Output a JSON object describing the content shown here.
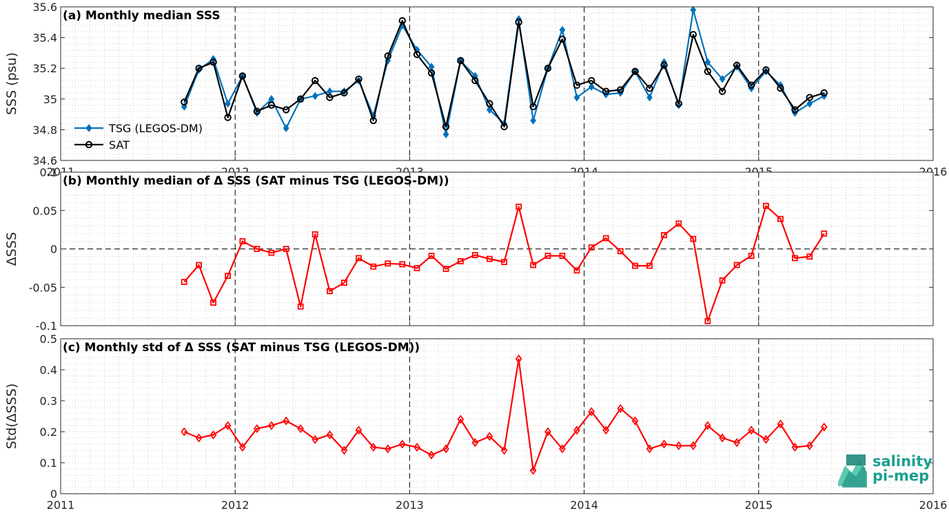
{
  "chart_data": [
    {
      "type": "line",
      "title": "(a) Monthly median SSS",
      "ylabel": "SSS (psu)",
      "xlim": [
        2011,
        2016
      ],
      "ylim": [
        34.6,
        35.6
      ],
      "yticks": [
        "34.6",
        "34.8",
        "35",
        "35.2",
        "35.4",
        "35.6"
      ],
      "grid": true,
      "legend_position": "bottom-left",
      "series": [
        {
          "name": "TSG (LEGOS-DM)",
          "color": "#0072bd",
          "marker": "diamond",
          "x": [
            2011.708,
            2011.792,
            2011.875,
            2011.958,
            2012.042,
            2012.125,
            2012.208,
            2012.292,
            2012.375,
            2012.458,
            2012.542,
            2012.625,
            2012.708,
            2012.792,
            2012.875,
            2012.958,
            2013.042,
            2013.125,
            2013.208,
            2013.292,
            2013.375,
            2013.458,
            2013.542,
            2013.625,
            2013.708,
            2013.792,
            2013.875,
            2013.958,
            2014.042,
            2014.125,
            2014.208,
            2014.292,
            2014.375,
            2014.458,
            2014.542,
            2014.625,
            2014.708,
            2014.792,
            2014.875,
            2014.958,
            2015.042,
            2015.125,
            2015.208,
            2015.292,
            2015.375
          ],
          "values": [
            34.95,
            35.19,
            35.26,
            34.97,
            35.15,
            34.91,
            35.0,
            34.81,
            35.0,
            35.02,
            35.05,
            35.05,
            35.12,
            34.89,
            35.25,
            35.48,
            35.32,
            35.21,
            34.77,
            35.25,
            35.15,
            34.93,
            34.84,
            35.52,
            34.86,
            35.2,
            35.45,
            35.01,
            35.08,
            35.03,
            35.04,
            35.18,
            35.01,
            35.24,
            34.96,
            35.58,
            35.24,
            35.13,
            35.21,
            35.07,
            35.18,
            35.09,
            34.91,
            34.97,
            35.02
          ]
        },
        {
          "name": "SAT",
          "color": "#000000",
          "marker": "circle",
          "x": [
            2011.708,
            2011.792,
            2011.875,
            2011.958,
            2012.042,
            2012.125,
            2012.208,
            2012.292,
            2012.375,
            2012.458,
            2012.542,
            2012.625,
            2012.708,
            2012.792,
            2012.875,
            2012.958,
            2013.042,
            2013.125,
            2013.208,
            2013.292,
            2013.375,
            2013.458,
            2013.542,
            2013.625,
            2013.708,
            2013.792,
            2013.875,
            2013.958,
            2014.042,
            2014.125,
            2014.208,
            2014.292,
            2014.375,
            2014.458,
            2014.542,
            2014.625,
            2014.708,
            2014.792,
            2014.875,
            2014.958,
            2015.042,
            2015.125,
            2015.208,
            2015.292,
            2015.375
          ],
          "values": [
            34.98,
            35.2,
            35.24,
            34.88,
            35.15,
            34.92,
            34.96,
            34.93,
            35.0,
            35.12,
            35.01,
            35.04,
            35.13,
            34.86,
            35.28,
            35.51,
            35.29,
            35.17,
            34.82,
            35.25,
            35.12,
            34.97,
            34.82,
            35.5,
            34.95,
            35.2,
            35.39,
            35.09,
            35.12,
            35.05,
            35.06,
            35.18,
            35.07,
            35.22,
            34.97,
            35.42,
            35.18,
            35.05,
            35.22,
            35.09,
            35.19,
            35.07,
            34.93,
            35.01,
            35.04
          ]
        }
      ],
      "xticks": [
        "2011",
        "2012",
        "2013",
        "2014",
        "2015",
        "2016"
      ]
    },
    {
      "type": "line",
      "title": "(b) Monthly median of Δ SSS (SAT minus TSG (LEGOS-DM))",
      "ylabel": "ΔSSS",
      "xlim": [
        2011,
        2016
      ],
      "ylim": [
        -0.1,
        0.1
      ],
      "yticks": [
        "-0.1",
        "-0.05",
        "0",
        "0.05",
        "0.1"
      ],
      "grid": true,
      "series": [
        {
          "color": "#ff0000",
          "marker": "square",
          "x": [
            2011.708,
            2011.792,
            2011.875,
            2011.958,
            2012.042,
            2012.125,
            2012.208,
            2012.292,
            2012.375,
            2012.458,
            2012.542,
            2012.625,
            2012.708,
            2012.792,
            2012.875,
            2012.958,
            2013.042,
            2013.125,
            2013.208,
            2013.292,
            2013.375,
            2013.458,
            2013.542,
            2013.625,
            2013.708,
            2013.792,
            2013.875,
            2013.958,
            2014.042,
            2014.125,
            2014.208,
            2014.292,
            2014.375,
            2014.458,
            2014.542,
            2014.625,
            2014.708,
            2014.792,
            2014.875,
            2014.958,
            2015.042,
            2015.125,
            2015.208,
            2015.292,
            2015.375
          ],
          "values": [
            -0.043,
            -0.021,
            -0.07,
            -0.035,
            0.01,
            0.0,
            -0.005,
            0.0,
            -0.075,
            0.019,
            -0.055,
            -0.044,
            -0.012,
            -0.023,
            -0.019,
            -0.02,
            -0.025,
            -0.009,
            -0.026,
            -0.016,
            -0.008,
            -0.013,
            -0.017,
            0.055,
            -0.021,
            -0.009,
            -0.009,
            -0.028,
            0.002,
            0.014,
            -0.003,
            -0.022,
            -0.022,
            0.018,
            0.033,
            0.013,
            -0.094,
            -0.041,
            -0.021,
            -0.009,
            0.056,
            0.039,
            -0.012,
            -0.01,
            0.02
          ]
        }
      ]
    },
    {
      "type": "line",
      "title": "(c) Monthly std of Δ SSS (SAT minus TSG (LEGOS-DM))",
      "ylabel": "Std(ΔSSS)",
      "xlim": [
        2011,
        2016
      ],
      "ylim": [
        0,
        0.5
      ],
      "yticks": [
        "0",
        "0.1",
        "0.2",
        "0.3",
        "0.4",
        "0.5"
      ],
      "grid": true,
      "series": [
        {
          "color": "#ff0000",
          "marker": "diamond",
          "x": [
            2011.708,
            2011.792,
            2011.875,
            2011.958,
            2012.042,
            2012.125,
            2012.208,
            2012.292,
            2012.375,
            2012.458,
            2012.542,
            2012.625,
            2012.708,
            2012.792,
            2012.875,
            2012.958,
            2013.042,
            2013.125,
            2013.208,
            2013.292,
            2013.375,
            2013.458,
            2013.542,
            2013.625,
            2013.708,
            2013.792,
            2013.875,
            2013.958,
            2014.042,
            2014.125,
            2014.208,
            2014.292,
            2014.375,
            2014.458,
            2014.542,
            2014.625,
            2014.708,
            2014.792,
            2014.875,
            2014.958,
            2015.042,
            2015.125,
            2015.208,
            2015.292,
            2015.375
          ],
          "values": [
            0.2,
            0.18,
            0.19,
            0.22,
            0.15,
            0.21,
            0.22,
            0.235,
            0.21,
            0.175,
            0.19,
            0.14,
            0.205,
            0.15,
            0.145,
            0.16,
            0.15,
            0.125,
            0.145,
            0.24,
            0.165,
            0.185,
            0.14,
            0.435,
            0.075,
            0.2,
            0.145,
            0.205,
            0.265,
            0.205,
            0.275,
            0.235,
            0.145,
            0.16,
            0.155,
            0.155,
            0.22,
            0.18,
            0.165,
            0.205,
            0.175,
            0.225,
            0.15,
            0.155,
            0.215
          ]
        }
      ],
      "xticks": [
        "2011",
        "2012",
        "2013",
        "2014",
        "2015",
        "2016"
      ]
    }
  ],
  "logo": {
    "line1": "salinity",
    "line2": "pi-mep"
  }
}
